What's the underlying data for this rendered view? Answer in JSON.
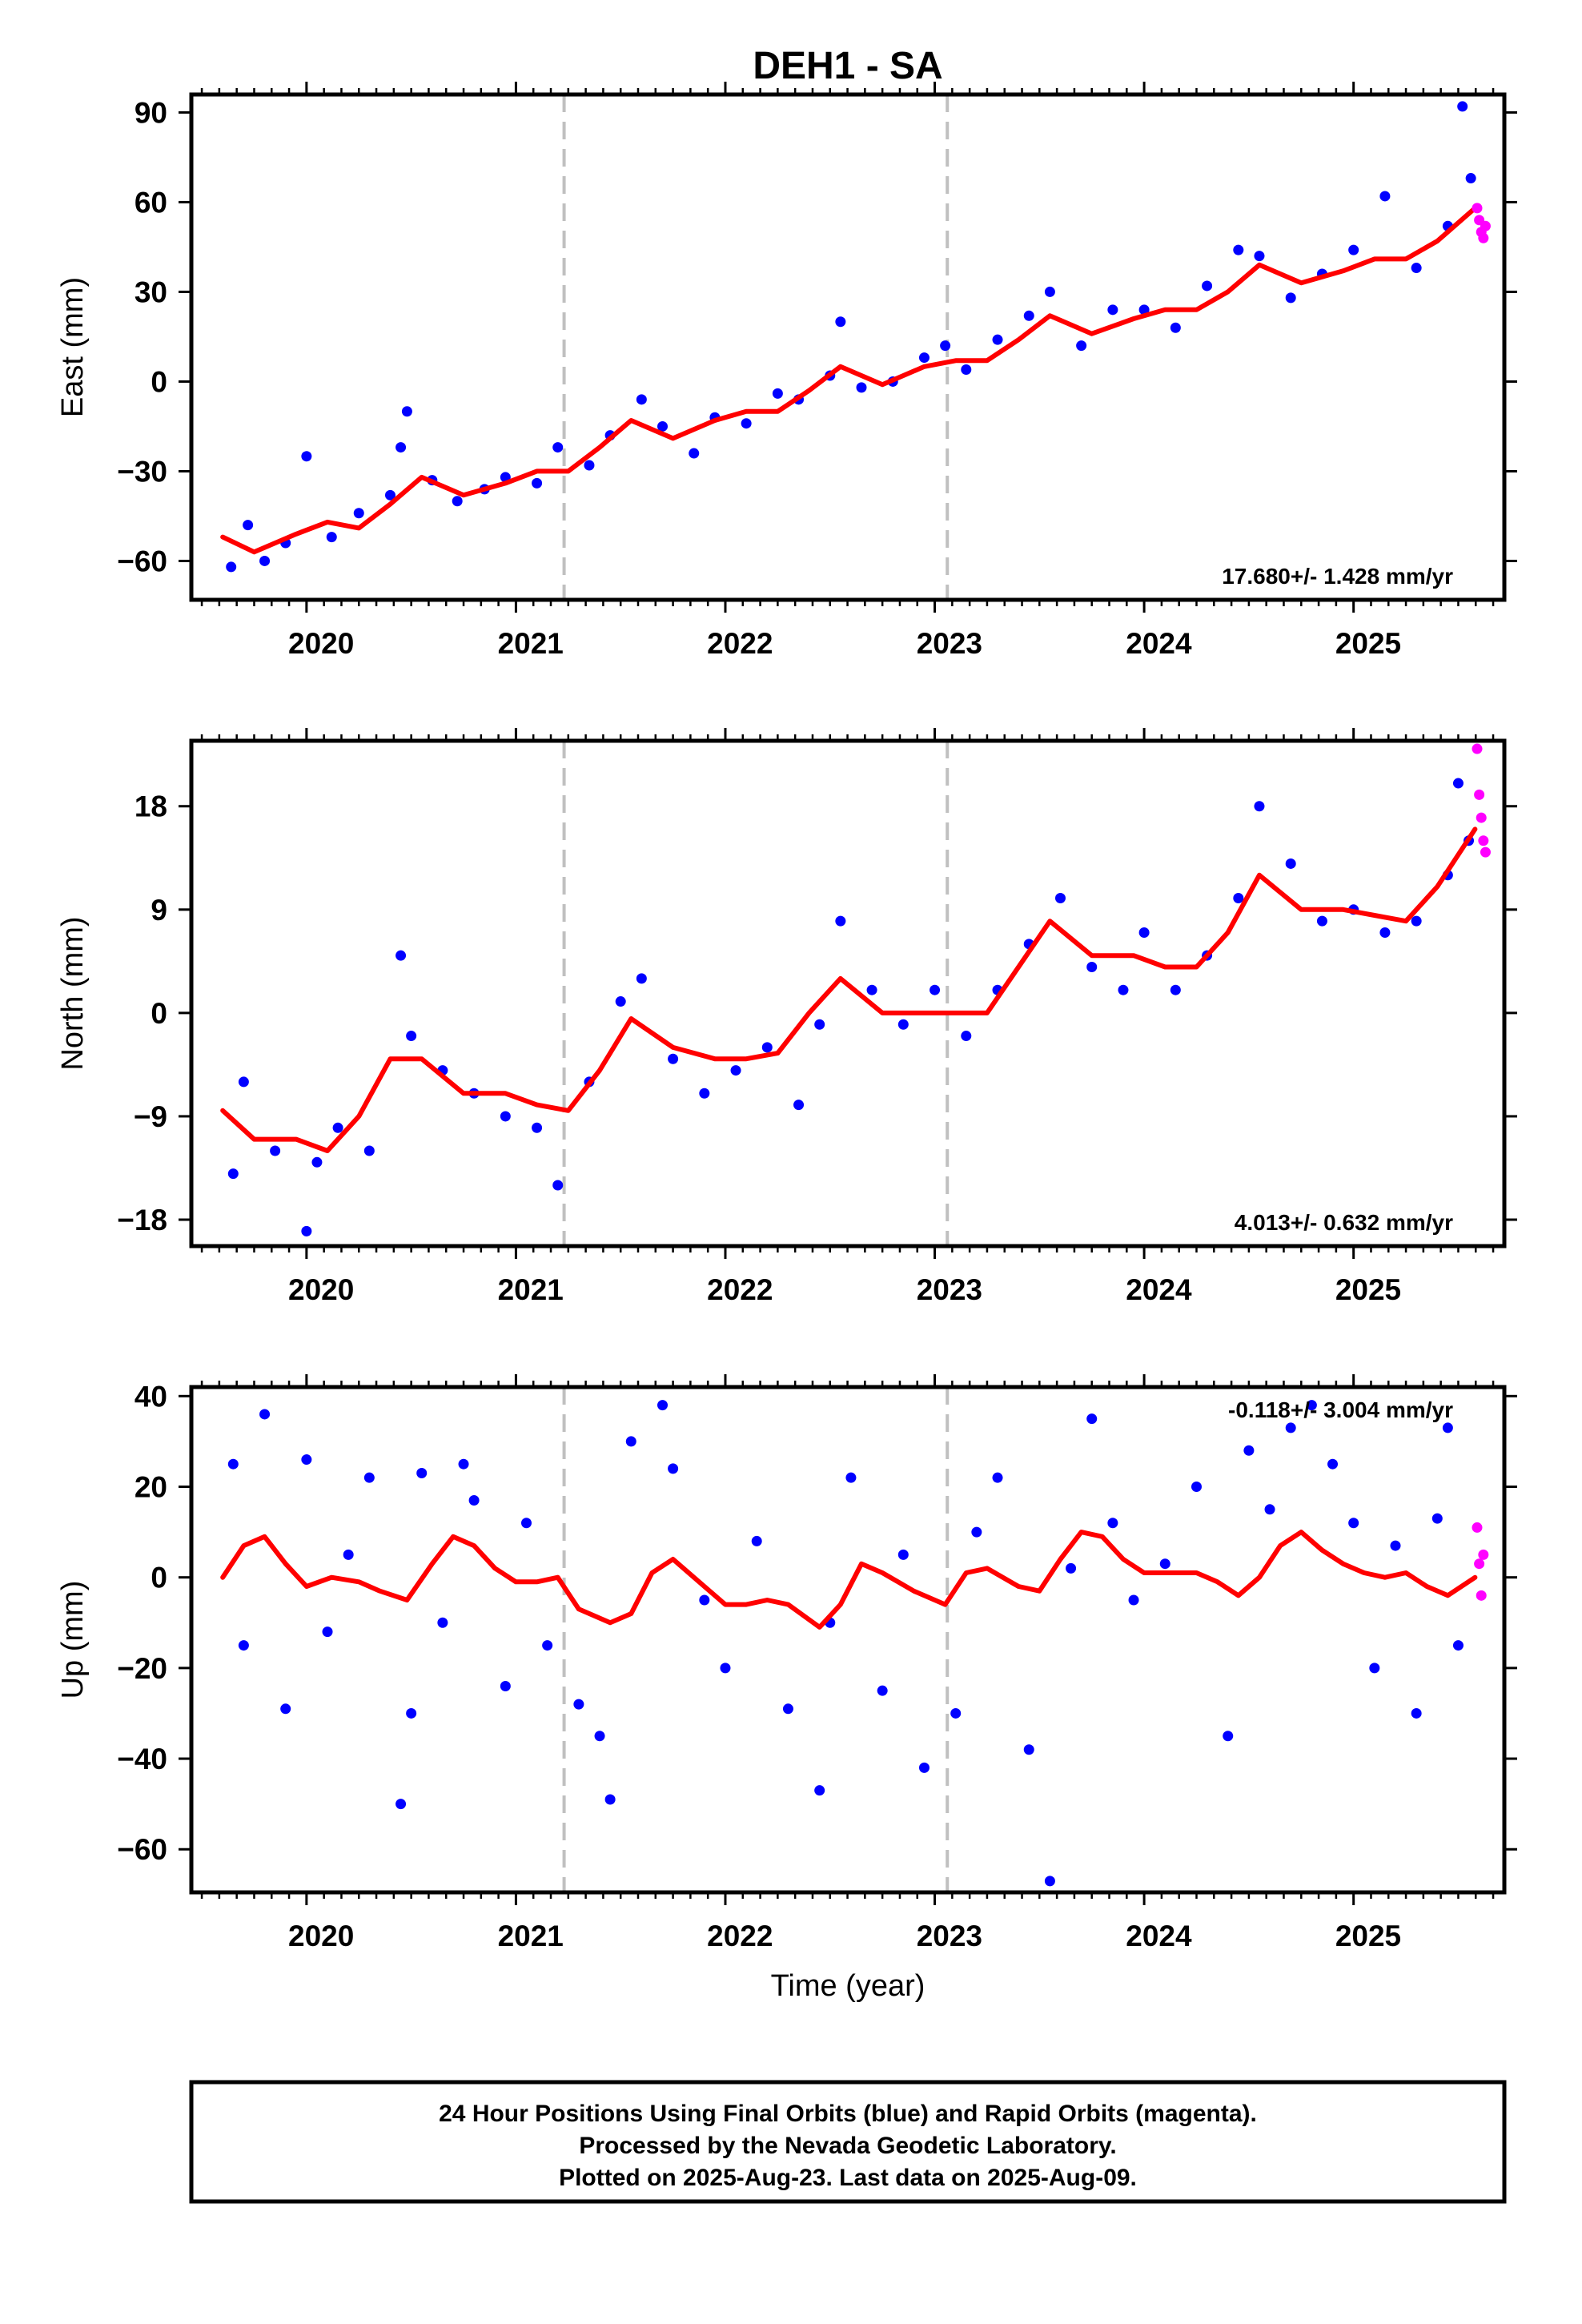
{
  "title": "DEH1 - SA",
  "footer": {
    "line1": "24 Hour Positions Using Final Orbits (blue) and Rapid Orbits (magenta).",
    "line2": "Processed by the Nevada Geodetic Laboratory.",
    "line3": "Plotted on 2025-Aug-23. Last data on 2025-Aug-09."
  },
  "colors": {
    "final": "#0000ff",
    "rapid": "#ff00ff",
    "fit": "#ff0000",
    "break": "#c0c0c0",
    "frame": "#000000"
  },
  "chart_data": [
    {
      "type": "scatter",
      "panel": "east",
      "ylabel": "East (mm)",
      "xlabel": "",
      "xlim": [
        2019.45,
        2025.72
      ],
      "ylim": [
        -73,
        96
      ],
      "xticks": [
        2020,
        2021,
        2022,
        2023,
        2024,
        2025
      ],
      "yticks": [
        -60,
        -30,
        0,
        30,
        60,
        90
      ],
      "rate_label": "17.680+/- 1.428 mm/yr",
      "rate_position": "bottom-right",
      "break_lines": [
        2021.23,
        2023.06
      ],
      "fit_curve": {
        "x": [
          2019.6,
          2019.75,
          2019.95,
          2020.1,
          2020.25,
          2020.4,
          2020.55,
          2020.75,
          2020.95,
          2021.1,
          2021.25,
          2021.4,
          2021.55,
          2021.75,
          2021.95,
          2022.1,
          2022.25,
          2022.4,
          2022.55,
          2022.75,
          2022.95,
          2023.1,
          2023.25,
          2023.4,
          2023.55,
          2023.75,
          2023.95,
          2024.1,
          2024.25,
          2024.4,
          2024.55,
          2024.75,
          2024.95,
          2025.1,
          2025.25,
          2025.4,
          2025.58
        ],
        "y": [
          -52,
          -57,
          -51,
          -47,
          -49,
          -41,
          -32,
          -38,
          -34,
          -30,
          -30,
          -22,
          -13,
          -19,
          -13,
          -10,
          -10,
          -3,
          5,
          -1,
          5,
          7,
          7,
          14,
          22,
          16,
          21,
          24,
          24,
          30,
          39,
          33,
          37,
          41,
          41,
          47,
          58
        ]
      },
      "final_points": {
        "x": [
          2019.64,
          2019.72,
          2019.8,
          2019.9,
          2020.0,
          2020.12,
          2020.25,
          2020.4,
          2020.45,
          2020.48,
          2020.6,
          2020.72,
          2020.85,
          2020.95,
          2021.1,
          2021.2,
          2021.35,
          2021.45,
          2021.6,
          2021.7,
          2021.85,
          2021.95,
          2022.1,
          2022.25,
          2022.35,
          2022.5,
          2022.55,
          2022.65,
          2022.8,
          2022.95,
          2023.05,
          2023.15,
          2023.3,
          2023.45,
          2023.55,
          2023.7,
          2023.85,
          2024.0,
          2024.15,
          2024.3,
          2024.45,
          2024.55,
          2024.7,
          2024.85,
          2025.0,
          2025.15,
          2025.3,
          2025.45,
          2025.52,
          2025.56
        ],
        "y": [
          -62,
          -48,
          -60,
          -54,
          -25,
          -52,
          -44,
          -38,
          -22,
          -10,
          -33,
          -40,
          -36,
          -32,
          -34,
          -22,
          -28,
          -18,
          -6,
          -15,
          -24,
          -12,
          -14,
          -4,
          -6,
          2,
          20,
          -2,
          0,
          8,
          12,
          4,
          14,
          22,
          30,
          12,
          24,
          24,
          18,
          32,
          44,
          42,
          28,
          36,
          44,
          62,
          38,
          52,
          92,
          68
        ]
      },
      "rapid_points": {
        "x": [
          2025.59,
          2025.6,
          2025.61,
          2025.62,
          2025.63
        ],
        "y": [
          58,
          54,
          50,
          48,
          52
        ]
      }
    },
    {
      "type": "scatter",
      "panel": "north",
      "ylabel": "North (mm)",
      "xlabel": "",
      "xlim": [
        2019.45,
        2025.72
      ],
      "ylim": [
        -20.3,
        23.7
      ],
      "xticks": [
        2020,
        2021,
        2022,
        2023,
        2024,
        2025
      ],
      "yticks": [
        -18,
        -9,
        0,
        9,
        18
      ],
      "rate_label": "4.013+/- 0.632 mm/yr",
      "rate_position": "bottom-right",
      "break_lines": [
        2021.23,
        2023.06
      ],
      "fit_curve": {
        "x": [
          2019.6,
          2019.75,
          2019.95,
          2020.1,
          2020.25,
          2020.4,
          2020.55,
          2020.75,
          2020.95,
          2021.1,
          2021.25,
          2021.4,
          2021.55,
          2021.75,
          2021.95,
          2022.1,
          2022.25,
          2022.4,
          2022.55,
          2022.75,
          2022.95,
          2023.1,
          2023.25,
          2023.4,
          2023.55,
          2023.75,
          2023.95,
          2024.1,
          2024.25,
          2024.4,
          2024.55,
          2024.75,
          2024.95,
          2025.1,
          2025.25,
          2025.4,
          2025.58
        ],
        "y": [
          -8.5,
          -11,
          -11,
          -12,
          -9,
          -4,
          -4,
          -7,
          -7,
          -8,
          -8.5,
          -5,
          -0.5,
          -3,
          -4,
          -4,
          -3.5,
          0,
          3,
          0,
          0,
          0,
          0,
          4,
          8,
          5,
          5,
          4,
          4,
          7,
          12,
          9,
          9,
          8.5,
          8,
          11,
          16
        ]
      },
      "final_points": {
        "x": [
          2019.65,
          2019.7,
          2019.85,
          2020.0,
          2020.05,
          2020.15,
          2020.3,
          2020.45,
          2020.5,
          2020.65,
          2020.8,
          2020.95,
          2021.1,
          2021.2,
          2021.35,
          2021.5,
          2021.6,
          2021.75,
          2021.9,
          2022.05,
          2022.2,
          2022.35,
          2022.45,
          2022.55,
          2022.7,
          2022.85,
          2023.0,
          2023.15,
          2023.3,
          2023.45,
          2023.6,
          2023.75,
          2023.9,
          2024.0,
          2024.15,
          2024.3,
          2024.45,
          2024.55,
          2024.7,
          2024.85,
          2025.0,
          2025.15,
          2025.3,
          2025.45,
          2025.5,
          2025.55
        ],
        "y": [
          -14,
          -6,
          -12,
          -19,
          -13,
          -10,
          -12,
          5,
          -2,
          -5,
          -7,
          -9,
          -10,
          -15,
          -6,
          1,
          3,
          -4,
          -7,
          -5,
          -3,
          -8,
          -1,
          8,
          2,
          -1,
          2,
          -2,
          2,
          6,
          10,
          4,
          2,
          7,
          2,
          5,
          10,
          18,
          13,
          8,
          9,
          7,
          8,
          12,
          20,
          15
        ]
      },
      "rapid_points": {
        "x": [
          2025.59,
          2025.6,
          2025.61,
          2025.62,
          2025.63
        ],
        "y": [
          23,
          19,
          17,
          15,
          14
        ]
      }
    },
    {
      "type": "scatter",
      "panel": "up",
      "ylabel": "Up (mm)",
      "xlabel": "Time (year)",
      "xlim": [
        2019.45,
        2025.72
      ],
      "ylim": [
        -69.5,
        42
      ],
      "xticks": [
        2020,
        2021,
        2022,
        2023,
        2024,
        2025
      ],
      "yticks": [
        -60,
        -40,
        -20,
        0,
        20,
        40
      ],
      "rate_label": "-0.118+/- 3.004 mm/yr",
      "rate_position": "top-right",
      "break_lines": [
        2021.23,
        2023.06
      ],
      "fit_curve": {
        "x": [
          2019.6,
          2019.7,
          2019.8,
          2019.9,
          2020.0,
          2020.12,
          2020.25,
          2020.35,
          2020.48,
          2020.6,
          2020.7,
          2020.8,
          2020.9,
          2021.0,
          2021.1,
          2021.2,
          2021.3,
          2021.45,
          2021.55,
          2021.65,
          2021.75,
          2021.9,
          2022.0,
          2022.1,
          2022.2,
          2022.3,
          2022.45,
          2022.55,
          2022.65,
          2022.75,
          2022.9,
          2023.05,
          2023.15,
          2023.25,
          2023.4,
          2023.5,
          2023.6,
          2023.7,
          2023.8,
          2023.9,
          2024.0,
          2024.1,
          2024.25,
          2024.35,
          2024.45,
          2024.55,
          2024.65,
          2024.75,
          2024.85,
          2024.95,
          2025.05,
          2025.15,
          2025.25,
          2025.35,
          2025.45,
          2025.58
        ],
        "y": [
          0,
          7,
          9,
          3,
          -2,
          0,
          -1,
          -3,
          -5,
          3,
          9,
          7,
          2,
          -1,
          -1,
          0,
          -7,
          -10,
          -8,
          1,
          4,
          -2,
          -6,
          -6,
          -5,
          -6,
          -11,
          -6,
          3,
          1,
          -3,
          -6,
          1,
          2,
          -2,
          -3,
          4,
          10,
          9,
          4,
          1,
          1,
          1,
          -1,
          -4,
          0,
          7,
          10,
          6,
          3,
          1,
          0,
          1,
          -2,
          -4,
          0
        ]
      },
      "final_points": {
        "x": [
          2019.65,
          2019.7,
          2019.8,
          2019.9,
          2020.0,
          2020.1,
          2020.2,
          2020.3,
          2020.45,
          2020.5,
          2020.55,
          2020.65,
          2020.75,
          2020.8,
          2020.95,
          2021.05,
          2021.15,
          2021.3,
          2021.4,
          2021.45,
          2021.55,
          2021.7,
          2021.75,
          2021.9,
          2022.0,
          2022.15,
          2022.3,
          2022.45,
          2022.5,
          2022.6,
          2022.75,
          2022.85,
          2022.95,
          2023.1,
          2023.2,
          2023.3,
          2023.45,
          2023.55,
          2023.65,
          2023.75,
          2023.85,
          2023.95,
          2024.1,
          2024.25,
          2024.4,
          2024.5,
          2024.6,
          2024.7,
          2024.8,
          2024.9,
          2025.0,
          2025.1,
          2025.2,
          2025.3,
          2025.4,
          2025.45,
          2025.5
        ],
        "y": [
          25,
          -15,
          36,
          -29,
          26,
          -12,
          5,
          22,
          -50,
          -30,
          23,
          -10,
          25,
          17,
          -24,
          12,
          -15,
          -28,
          -35,
          -49,
          30,
          38,
          24,
          -5,
          -20,
          8,
          -29,
          -47,
          -10,
          22,
          -25,
          5,
          -42,
          -30,
          10,
          22,
          -38,
          -67,
          2,
          35,
          12,
          -5,
          3,
          20,
          -35,
          28,
          15,
          33,
          38,
          25,
          12,
          -20,
          7,
          -30,
          13,
          33,
          -15
        ]
      },
      "rapid_points": {
        "x": [
          2025.59,
          2025.6,
          2025.61,
          2025.62
        ],
        "y": [
          11,
          3,
          -4,
          5
        ]
      }
    }
  ]
}
